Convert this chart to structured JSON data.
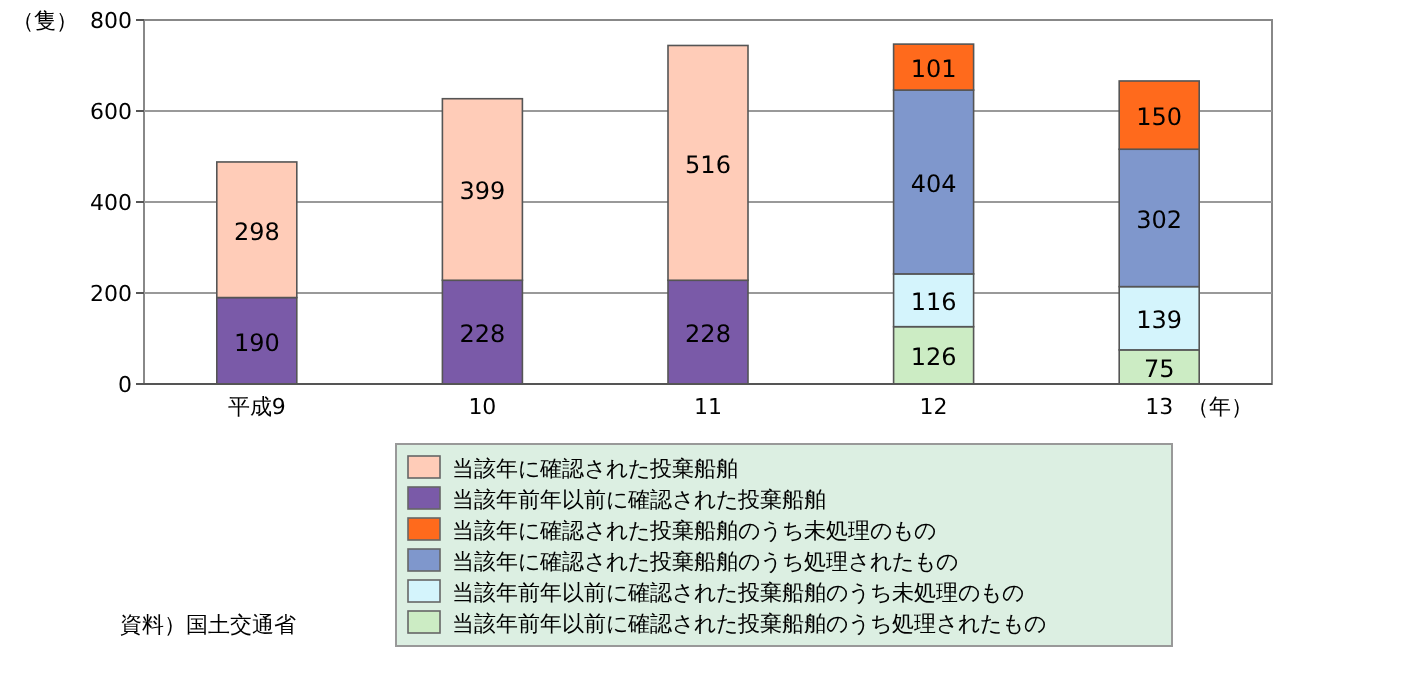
{
  "chart_data": {
    "type": "bar",
    "stacked": true,
    "ylabel": "（隻）",
    "xlabel": "（年）",
    "categories": [
      "平成9",
      "10",
      "11",
      "12",
      "13"
    ],
    "series": [
      {
        "name": "当該年前年以前に確認された投棄船舶のうち処理されたもの",
        "color": "#ccecc4",
        "values": [
          null,
          null,
          null,
          126,
          75
        ]
      },
      {
        "name": "当該年前年以前に確認された投棄船舶のうち未処理のもの",
        "color": "#d4f4fc",
        "values": [
          null,
          null,
          null,
          116,
          139
        ]
      },
      {
        "name": "当該年に確認された投棄船舶のうち処理されたもの",
        "color": "#7f97cc",
        "values": [
          null,
          null,
          null,
          404,
          302
        ]
      },
      {
        "name": "当該年に確認された投棄船舶のうち未処理のもの",
        "color": "#ff6a1c",
        "values": [
          null,
          null,
          null,
          101,
          150
        ]
      },
      {
        "name": "当該年前年以前に確認された投棄船舶",
        "color": "#7a5aa8",
        "values": [
          190,
          228,
          228,
          null,
          null
        ]
      },
      {
        "name": "当該年に確認された投棄船舶",
        "color": "#ffccb8",
        "values": [
          298,
          399,
          516,
          null,
          null
        ]
      }
    ],
    "ylim": [
      0,
      800
    ],
    "yticks": [
      0,
      200,
      400,
      600,
      800
    ],
    "grid": "y",
    "data_labels": true,
    "legend": "bottom",
    "annotations": [
      "資料）国土交通省"
    ]
  }
}
